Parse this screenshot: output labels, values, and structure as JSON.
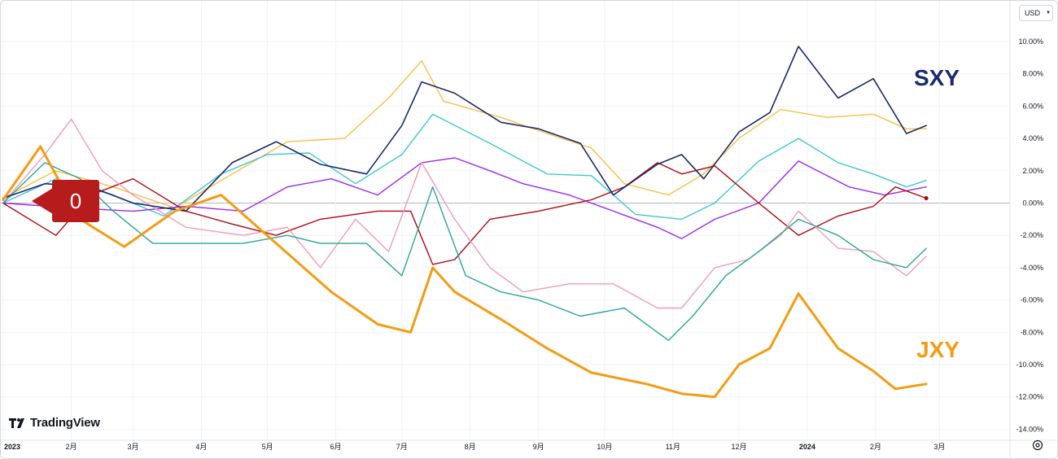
{
  "app": {
    "currency": "USD",
    "logo_text": "TradingView",
    "marker_label": "0"
  },
  "colors": {
    "SXY": "#1a2a6c",
    "JXY": "#f39c12",
    "gold": "#f6c142",
    "cyan": "#3fc6d6",
    "purple": "#9c27f0",
    "darkred": "#b0060f",
    "pink": "#f09cb4",
    "teal": "#26a69a",
    "zeroline": "#b2b5be",
    "grid": "#f0f3fa",
    "axis_text": "#131722"
  },
  "chart_data": {
    "type": "line",
    "ylim": [
      -14,
      11
    ],
    "y_ticks": [
      "10.00%",
      "8.00%",
      "6.00%",
      "4.00%",
      "2.00%",
      "0.00%",
      "-2.00%",
      "-4.00%",
      "-6.00%",
      "-8.00%",
      "-10.00%",
      "-12.00%",
      "-14.00%"
    ],
    "y_tick_values": [
      10,
      8,
      6,
      4,
      2,
      0,
      -2,
      -4,
      -6,
      -8,
      -10,
      -12,
      -14
    ],
    "x_ticks": [
      "2023",
      "2月",
      "3月",
      "4月",
      "5月",
      "6月",
      "7月",
      "8月",
      "9月",
      "10月",
      "11月",
      "12月",
      "2024",
      "2月",
      "3月"
    ],
    "x_tick_dates": [
      "2023-01-01",
      "2023-02-01",
      "2023-03-01",
      "2023-04-01",
      "2023-05-01",
      "2023-06-01",
      "2023-07-01",
      "2023-08-01",
      "2023-09-01",
      "2023-10-01",
      "2023-11-01",
      "2023-12-01",
      "2024-01-01",
      "2024-02-01",
      "2024-03-01"
    ],
    "x_range": [
      "2022-12-31",
      "2024-04-02"
    ],
    "grid": true,
    "series_labels": [
      {
        "series": "SXY",
        "text": "SXY"
      },
      {
        "series": "JXY",
        "text": "JXY"
      }
    ],
    "series": [
      {
        "name": "SXY",
        "color": "#1a2a6c",
        "width": 1.6,
        "x": [
          "2023-01-01",
          "2023-01-20",
          "2023-02-10",
          "2023-03-01",
          "2023-03-25",
          "2023-04-15",
          "2023-05-05",
          "2023-05-25",
          "2023-06-15",
          "2023-07-01",
          "2023-07-10",
          "2023-07-25",
          "2023-08-15",
          "2023-09-01",
          "2023-09-20",
          "2023-10-05",
          "2023-10-25",
          "2023-11-05",
          "2023-11-15",
          "2023-12-01",
          "2023-12-15",
          "2023-12-28",
          "2024-01-15",
          "2024-01-31",
          "2024-02-15",
          "2024-02-24"
        ],
        "y": [
          0.3,
          1.2,
          1.0,
          0.0,
          -0.5,
          2.5,
          3.8,
          2.4,
          1.8,
          4.8,
          7.5,
          6.8,
          5.0,
          4.6,
          3.7,
          0.5,
          2.4,
          3.0,
          1.5,
          4.4,
          5.6,
          9.7,
          6.5,
          7.7,
          4.3,
          4.8
        ]
      },
      {
        "name": "JXY",
        "color": "#f39c12",
        "width": 3,
        "x": [
          "2023-01-01",
          "2023-01-18",
          "2023-02-05",
          "2023-02-25",
          "2023-03-20",
          "2023-04-10",
          "2023-05-05",
          "2023-05-30",
          "2023-06-20",
          "2023-07-05",
          "2023-07-15",
          "2023-07-25",
          "2023-08-15",
          "2023-09-05",
          "2023-09-25",
          "2023-10-20",
          "2023-11-05",
          "2023-11-20",
          "2023-12-01",
          "2023-12-15",
          "2023-12-28",
          "2024-01-15",
          "2024-01-31",
          "2024-02-10",
          "2024-02-24"
        ],
        "y": [
          0.2,
          3.5,
          -1.0,
          -2.7,
          -0.5,
          0.5,
          -2.5,
          -5.5,
          -7.5,
          -8.0,
          -4.0,
          -5.5,
          -7.2,
          -9.0,
          -10.5,
          -11.2,
          -11.8,
          -12.0,
          -10.0,
          -9.0,
          -5.6,
          -9.0,
          -10.4,
          -11.5,
          -11.2
        ]
      },
      {
        "name": "",
        "color": "#f6c142",
        "width": 1.4,
        "x": [
          "2023-01-01",
          "2023-01-25",
          "2023-02-20",
          "2023-03-20",
          "2023-04-15",
          "2023-05-10",
          "2023-06-05",
          "2023-06-25",
          "2023-07-10",
          "2023-07-20",
          "2023-08-15",
          "2023-09-05",
          "2023-09-25",
          "2023-10-10",
          "2023-10-30",
          "2023-11-15",
          "2023-12-01",
          "2023-12-20",
          "2024-01-10",
          "2024-01-31",
          "2024-02-15",
          "2024-02-24"
        ],
        "y": [
          0.3,
          2.0,
          1.0,
          -0.3,
          1.8,
          3.8,
          4.0,
          6.5,
          8.8,
          6.3,
          5.3,
          4.3,
          3.4,
          1.2,
          0.5,
          1.8,
          4.0,
          5.8,
          5.3,
          5.5,
          4.6,
          4.6
        ]
      },
      {
        "name": "",
        "color": "#3fc6d6",
        "width": 1.4,
        "x": [
          "2023-01-01",
          "2023-01-25",
          "2023-02-20",
          "2023-03-15",
          "2023-04-10",
          "2023-05-01",
          "2023-05-20",
          "2023-06-10",
          "2023-07-01",
          "2023-07-15",
          "2023-08-10",
          "2023-09-05",
          "2023-09-25",
          "2023-10-15",
          "2023-11-05",
          "2023-11-20",
          "2023-12-10",
          "2023-12-28",
          "2024-01-15",
          "2024-01-31",
          "2024-02-15",
          "2024-02-24"
        ],
        "y": [
          0.0,
          1.5,
          0.5,
          -0.8,
          1.8,
          3.0,
          3.1,
          1.2,
          3.0,
          5.5,
          3.7,
          1.8,
          1.7,
          -0.7,
          -1.0,
          0.0,
          2.6,
          4.0,
          2.5,
          1.8,
          1.0,
          1.4
        ]
      },
      {
        "name": "",
        "color": "#9c27f0",
        "width": 1.4,
        "x": [
          "2023-01-01",
          "2023-02-01",
          "2023-03-01",
          "2023-03-25",
          "2023-04-20",
          "2023-05-10",
          "2023-05-30",
          "2023-06-20",
          "2023-07-10",
          "2023-07-25",
          "2023-08-10",
          "2023-08-25",
          "2023-09-15",
          "2023-10-05",
          "2023-10-25",
          "2023-11-05",
          "2023-11-20",
          "2023-12-10",
          "2023-12-28",
          "2024-01-20",
          "2024-02-05",
          "2024-02-24"
        ],
        "y": [
          0.0,
          -0.3,
          -0.5,
          -0.2,
          -0.5,
          1.0,
          1.5,
          0.5,
          2.5,
          2.8,
          2.0,
          1.2,
          0.5,
          -0.5,
          -1.5,
          -2.2,
          -1.0,
          0.0,
          2.6,
          1.0,
          0.5,
          1.0
        ]
      },
      {
        "name": "",
        "color": "#b0060f",
        "width": 1.4,
        "x": [
          "2023-01-01",
          "2023-01-25",
          "2023-02-10",
          "2023-03-01",
          "2023-03-25",
          "2023-04-15",
          "2023-05-05",
          "2023-05-25",
          "2023-06-20",
          "2023-07-05",
          "2023-07-15",
          "2023-07-25",
          "2023-08-10",
          "2023-09-01",
          "2023-09-25",
          "2023-10-10",
          "2023-10-25",
          "2023-11-05",
          "2023-11-20",
          "2023-12-10",
          "2023-12-28",
          "2024-01-15",
          "2024-01-31",
          "2024-02-10",
          "2024-02-24"
        ],
        "y": [
          0.0,
          -2.0,
          0.5,
          1.5,
          -0.5,
          -1.3,
          -2.0,
          -1.0,
          -0.5,
          -0.5,
          -3.8,
          -3.5,
          -1.0,
          -0.5,
          0.2,
          1.0,
          2.5,
          1.8,
          2.3,
          0.0,
          -2.0,
          -0.8,
          -0.2,
          1.0,
          0.3
        ]
      },
      {
        "name": "",
        "color": "#f09cb4",
        "width": 1.4,
        "x": [
          "2023-01-01",
          "2023-01-20",
          "2023-02-01",
          "2023-02-15",
          "2023-03-01",
          "2023-03-25",
          "2023-04-20",
          "2023-05-10",
          "2023-05-25",
          "2023-06-10",
          "2023-06-25",
          "2023-07-10",
          "2023-07-25",
          "2023-08-10",
          "2023-08-25",
          "2023-09-15",
          "2023-10-05",
          "2023-10-25",
          "2023-11-05",
          "2023-11-20",
          "2023-12-05",
          "2023-12-20",
          "2023-12-28",
          "2024-01-15",
          "2024-01-31",
          "2024-02-15",
          "2024-02-24"
        ],
        "y": [
          0.0,
          3.0,
          5.2,
          2.0,
          0.5,
          -1.5,
          -2.0,
          -1.5,
          -4.0,
          -1.0,
          -3.0,
          2.5,
          -1.0,
          -4.0,
          -5.5,
          -5.0,
          -5.0,
          -6.5,
          -6.5,
          -4.0,
          -3.5,
          -2.0,
          -0.5,
          -2.8,
          -3.0,
          -4.5,
          -3.3
        ]
      },
      {
        "name": "",
        "color": "#26a69a",
        "width": 1.4,
        "x": [
          "2023-01-01",
          "2023-01-20",
          "2023-02-05",
          "2023-02-20",
          "2023-03-10",
          "2023-03-30",
          "2023-04-20",
          "2023-05-10",
          "2023-05-25",
          "2023-06-15",
          "2023-07-01",
          "2023-07-15",
          "2023-07-30",
          "2023-08-15",
          "2023-09-01",
          "2023-09-20",
          "2023-10-10",
          "2023-10-30",
          "2023-11-10",
          "2023-11-25",
          "2023-12-10",
          "2023-12-28",
          "2024-01-15",
          "2024-01-31",
          "2024-02-15",
          "2024-02-24"
        ],
        "y": [
          0.0,
          2.5,
          1.5,
          -0.5,
          -2.5,
          -2.5,
          -2.5,
          -2.0,
          -2.5,
          -2.5,
          -4.5,
          1.0,
          -4.5,
          -5.5,
          -6.0,
          -7.0,
          -6.5,
          -8.5,
          -7.0,
          -4.5,
          -3.0,
          -1.0,
          -2.0,
          -3.5,
          -4.0,
          -2.8
        ]
      }
    ]
  }
}
